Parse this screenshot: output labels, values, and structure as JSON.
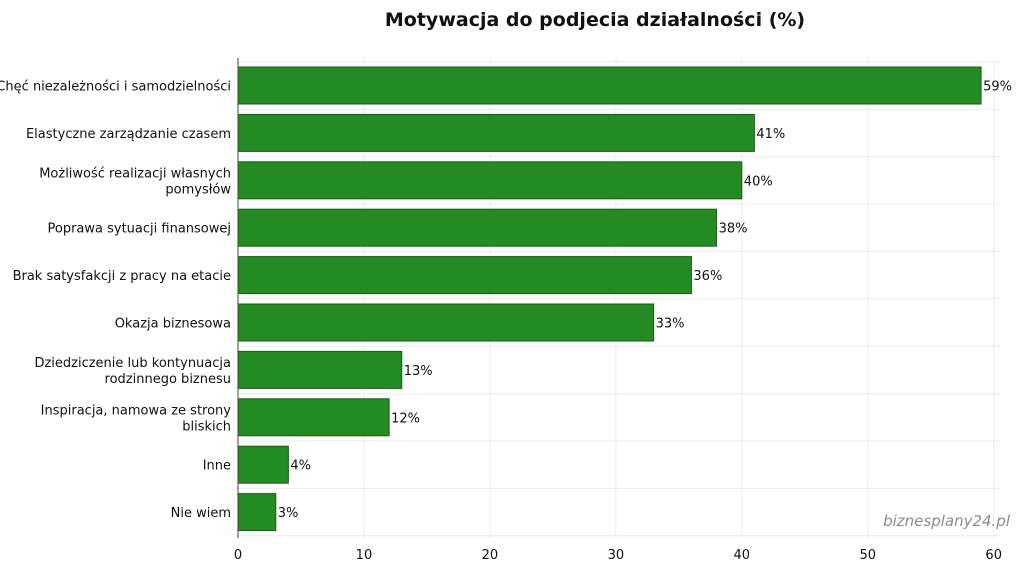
{
  "chart_data": {
    "type": "bar",
    "orientation": "horizontal",
    "title": "Motywacja do podjecia działalności (%)",
    "categories": [
      "Chęć niezależności i samodzielności",
      "Elastyczne zarządzanie czasem",
      "Możliwość realizacji własnych pomysłów",
      "Poprawa sytuacji finansowej",
      "Brak satysfakcji z pracy na etacie",
      "Okazja biznesowa",
      "Dziedziczenie lub kontynuacja rodzinnego biznesu",
      "Inspiracja, namowa ze strony bliskich",
      "Inne",
      "Nie wiem"
    ],
    "category_lines": [
      [
        "Chęć niezależności i samodzielności"
      ],
      [
        "Elastyczne zarządzanie czasem"
      ],
      [
        "Możliwość realizacji własnych",
        "pomysłów"
      ],
      [
        "Poprawa sytuacji finansowej"
      ],
      [
        "Brak satysfakcji z pracy na etacie"
      ],
      [
        "Okazja biznesowa"
      ],
      [
        "Dziedziczenie lub kontynuacja",
        "rodzinnego biznesu"
      ],
      [
        "Inspiracja, namowa ze strony",
        "bliskich"
      ],
      [
        "Inne"
      ],
      [
        "Nie wiem"
      ]
    ],
    "values": [
      59,
      41,
      40,
      38,
      36,
      33,
      13,
      12,
      4,
      3
    ],
    "value_labels": [
      "59%",
      "41%",
      "40%",
      "38%",
      "36%",
      "33%",
      "13%",
      "12%",
      "4%",
      "3%"
    ],
    "xlim": [
      0,
      60.5
    ],
    "xticks": [
      0,
      10,
      20,
      30,
      40,
      50,
      60
    ],
    "xlabel": "",
    "ylabel": "",
    "grid": true,
    "bar_color": "#238b22",
    "bar_edge_color": "#1a5e19"
  },
  "watermark": "biznesplany24.pl",
  "colors": {
    "grid": "#ececec",
    "axis": "#444444"
  }
}
